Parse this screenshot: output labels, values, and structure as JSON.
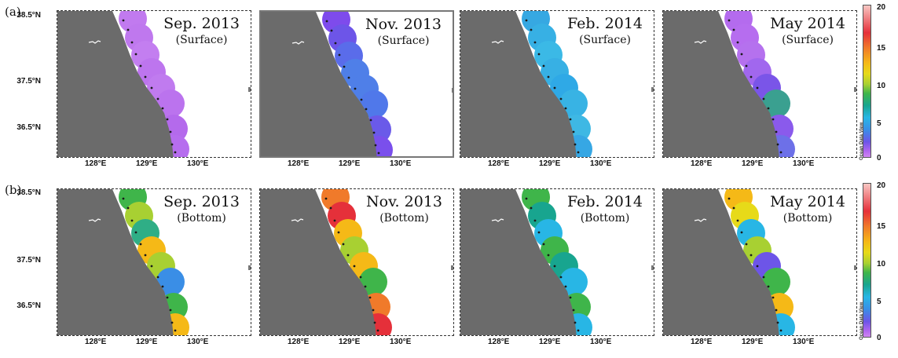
{
  "rows": [
    {
      "label": "(a)",
      "panels": [
        {
          "date": "Sep. 2013",
          "layer": "(Surface)",
          "scheme": "s1"
        },
        {
          "date": "Nov. 2013",
          "layer": "(Surface)",
          "scheme": "s2"
        },
        {
          "date": "Feb. 2014",
          "layer": "(Surface)",
          "scheme": "s3"
        },
        {
          "date": "May 2014",
          "layer": "(Surface)",
          "scheme": "s4"
        }
      ]
    },
    {
      "label": "(b)",
      "panels": [
        {
          "date": "Sep. 2013",
          "layer": "(Bottom)",
          "scheme": "b1"
        },
        {
          "date": "Nov. 2013",
          "layer": "(Bottom)",
          "scheme": "b2"
        },
        {
          "date": "Feb. 2014",
          "layer": "(Bottom)",
          "scheme": "b3"
        },
        {
          "date": "May 2014",
          "layer": "(Bottom)",
          "scheme": "b4"
        }
      ]
    }
  ],
  "latitude_labels": [
    "38.5°N",
    "37.5°N",
    "36.5°N"
  ],
  "longitude_labels": [
    "128°E",
    "129°E",
    "130°E"
  ],
  "colorbar": {
    "ticks_top": [
      "20",
      "15",
      "10",
      "5",
      "0"
    ],
    "ticks_bottom": [
      "20",
      "15",
      "10",
      "5",
      "0"
    ],
    "tag": "Ocean Data View"
  },
  "colors": {
    "land": "#6b6b6b",
    "station": "#1a1a1a",
    "schemes": {
      "s1": [
        "#c17aef",
        "#bf78ee",
        "#c37ef0",
        "#bd75ee",
        "#c07bef",
        "#bb73ee",
        "#b46aec",
        "#b66dee"
      ],
      "s2": [
        "#7e4bec",
        "#6d55e8",
        "#5a6cea",
        "#4f7fe8",
        "#4f7fe8",
        "#5078ea",
        "#6a5ae9",
        "#7a4fec"
      ],
      "s3": [
        "#36a8e2",
        "#37b0e4",
        "#3bb9e6",
        "#37b0e4",
        "#2fa9e6",
        "#38b3e4",
        "#3eb8e4",
        "#36a7e4"
      ],
      "s4": [
        "#b46bee",
        "#b66def",
        "#b571ee",
        "#a167ee",
        "#7a55e8",
        "#3aa090",
        "#8a5aec",
        "#6d70e8"
      ],
      "b1": [
        "#3fb54a",
        "#a8d032",
        "#2fae86",
        "#f5b917",
        "#a8d032",
        "#3a8ee6",
        "#3fb54a",
        "#f5b917"
      ],
      "b2": [
        "#f07a2a",
        "#e5303a",
        "#f5b917",
        "#a8d032",
        "#f5b917",
        "#3fb54a",
        "#f07a2a",
        "#e5303a"
      ],
      "b3": [
        "#3fb54a",
        "#18a58f",
        "#28b6e5",
        "#3fb54a",
        "#18a58f",
        "#28b6e5",
        "#3fb54a",
        "#28b6e5"
      ],
      "b4": [
        "#f5b917",
        "#e7da19",
        "#28b6e5",
        "#a8d032",
        "#6d55e8",
        "#3fb54a",
        "#f5b917",
        "#28b6e5"
      ]
    }
  }
}
